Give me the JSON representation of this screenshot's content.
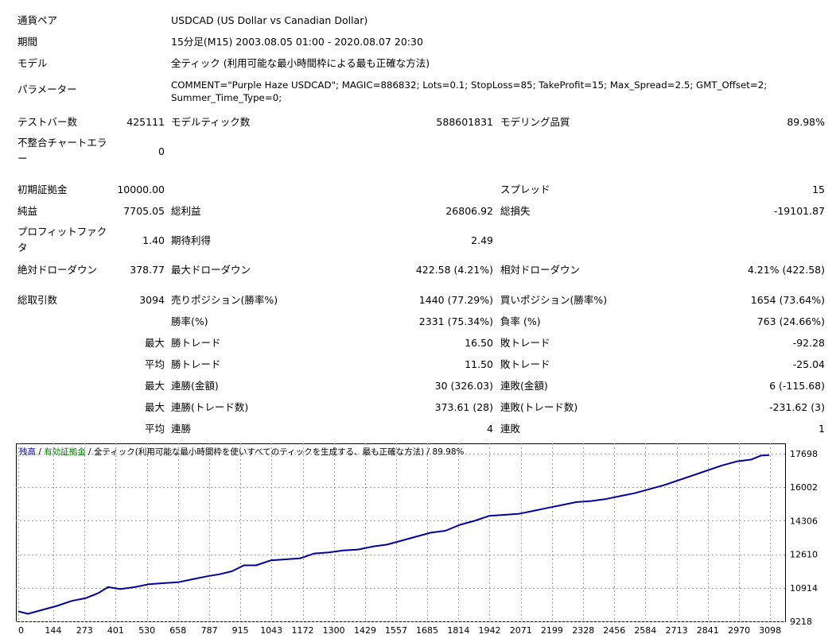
{
  "header": {
    "symbol_label": "通貨ペア",
    "symbol_value": "USDCAD (US Dollar vs Canadian Dollar)",
    "period_label": "期間",
    "period_value": "15分足(M15) 2003.08.05 01:00 - 2020.08.07 20:30",
    "model_label": "モデル",
    "model_value": "全ティック (利用可能な最小時間枠による最も正確な方法)",
    "params_label": "パラメーター",
    "params_line1": "COMMENT=\"Purple Haze USDCAD\"; MAGIC=886832; Lots=0.1; StopLoss=85; TakeProfit=15; Max_Spread=2.5; GMT_Offset=2;",
    "params_line2": "Summer_Time_Type=0;"
  },
  "stats": {
    "bars_label": "テストバー数",
    "bars_value": "425111",
    "ticks_label": "モデルティック数",
    "ticks_value": "588601831",
    "quality_label": "モデリング品質",
    "quality_value": "89.98%",
    "mismatch_label_1": "不整合チャートエラ",
    "mismatch_label_2": "ー",
    "mismatch_value": "0",
    "deposit_label": "初期証拠金",
    "deposit_value": "10000.00",
    "spread_label": "スプレッド",
    "spread_value": "15",
    "net_label": "純益",
    "net_value": "7705.05",
    "gross_profit_label": "総利益",
    "gross_profit_value": "26806.92",
    "gross_loss_label": "総損失",
    "gross_loss_value": "-19101.87",
    "pf_label_1": "プロフィットファク",
    "pf_label_2": "タ",
    "pf_value": "1.40",
    "expected_label": "期待利得",
    "expected_value": "2.49",
    "abs_dd_label": "絶対ドローダウン",
    "abs_dd_value": "378.77",
    "max_dd_label": "最大ドローダウン",
    "max_dd_value": "422.58 (4.21%)",
    "rel_dd_label": "相対ドローダウン",
    "rel_dd_value": "4.21% (422.58)",
    "total_trades_label": "総取引数",
    "total_trades_value": "3094",
    "short_label": "売りポジション(勝率%)",
    "short_value": "1440 (77.29%)",
    "long_label": "買いポジション(勝率%)",
    "long_value": "1654 (73.64%)",
    "win_pct_label": "勝率(%)",
    "win_pct_value": "2331 (75.34%)",
    "loss_pct_label": "負率 (%)",
    "loss_pct_value": "763 (24.66%)",
    "max1": "最大",
    "largest_win_label": "勝トレード",
    "largest_win_value": "16.50",
    "largest_loss_label": "敗トレード",
    "largest_loss_value": "-92.28",
    "avg1": "平均",
    "avg_win_label": "勝トレード",
    "avg_win_value": "11.50",
    "avg_loss_label": "敗トレード",
    "avg_loss_value": "-25.04",
    "max2": "最大",
    "cons_wins_money_label": "連勝(金額)",
    "cons_wins_money_value": "30 (326.03)",
    "cons_losses_money_label": "連敗(金額)",
    "cons_losses_money_value": "6 (-115.68)",
    "max3": "最大",
    "cons_wins_count_label": "連勝(トレード数)",
    "cons_wins_count_value": "373.61 (28)",
    "cons_losses_count_label": "連敗(トレード数)",
    "cons_losses_count_value": "-231.62 (3)",
    "avg2": "平均",
    "avg_cons_wins_label": "連勝",
    "avg_cons_wins_value": "4",
    "avg_cons_losses_label": "連敗",
    "avg_cons_losses_value": "1"
  },
  "chart_data": {
    "type": "line",
    "legend": {
      "balance": "残高",
      "sep1": " / ",
      "equity": "有効証拠金",
      "sep2": " / ",
      "model": "全ティック(利用可能な最小時間枠を使いすべてのティックを生成する、最も正確な方法)",
      "sep3": " / ",
      "quality": "89.98%"
    },
    "x_ticks": [
      0,
      144,
      273,
      401,
      530,
      658,
      787,
      915,
      1043,
      1172,
      1300,
      1429,
      1557,
      1685,
      1814,
      1942,
      2071,
      2199,
      2328,
      2456,
      2584,
      2713,
      2841,
      2970,
      3098
    ],
    "y_ticks": [
      9218,
      10914,
      12610,
      14306,
      16002,
      17698
    ],
    "xlim": [
      0,
      3150
    ],
    "ylim": [
      9218,
      18218
    ],
    "series": [
      {
        "name": "残高",
        "x": [
          0,
          40,
          100,
          160,
          220,
          280,
          330,
          370,
          420,
          480,
          540,
          600,
          660,
          720,
          780,
          830,
          880,
          930,
          980,
          1040,
          1100,
          1160,
          1220,
          1280,
          1340,
          1400,
          1460,
          1520,
          1580,
          1640,
          1700,
          1760,
          1820,
          1880,
          1940,
          2000,
          2060,
          2120,
          2180,
          2240,
          2300,
          2360,
          2420,
          2480,
          2540,
          2600,
          2660,
          2720,
          2780,
          2840,
          2900,
          2960,
          3020,
          3060,
          3094
        ],
        "y": [
          9720,
          9600,
          9800,
          10000,
          10250,
          10400,
          10650,
          10950,
          10850,
          10950,
          11100,
          11150,
          11200,
          11350,
          11500,
          11600,
          11750,
          12050,
          12050,
          12300,
          12350,
          12400,
          12650,
          12700,
          12800,
          12850,
          13000,
          13100,
          13300,
          13500,
          13700,
          13800,
          14100,
          14300,
          14550,
          14600,
          14650,
          14800,
          14950,
          15100,
          15250,
          15300,
          15400,
          15550,
          15700,
          15900,
          16100,
          16350,
          16600,
          16850,
          17100,
          17300,
          17400,
          17600,
          17620
        ]
      }
    ]
  }
}
